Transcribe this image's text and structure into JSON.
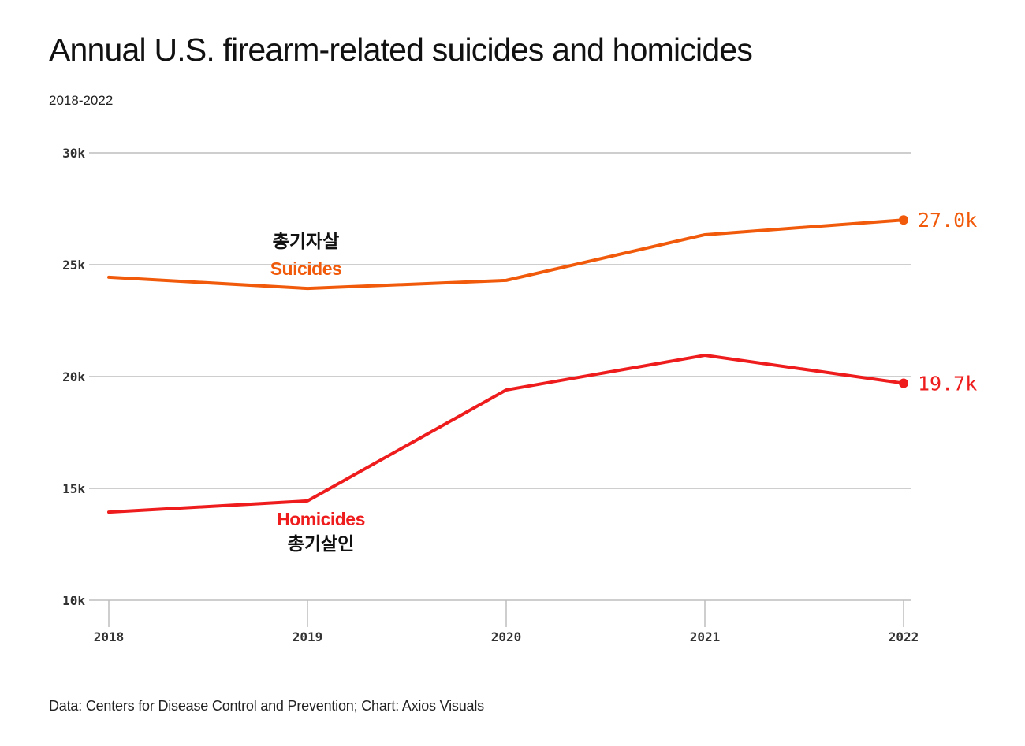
{
  "header": {
    "title": "Annual U.S. firearm-related suicides and homicides",
    "subtitle": "2018-2022"
  },
  "footer": {
    "source": "Data: Centers for Disease Control and Prevention; Chart: Axios Visuals"
  },
  "colors": {
    "suicides": "#f05a0a",
    "homicides": "#ee1c1c",
    "grid": "#bdbdbd",
    "text": "#333333"
  },
  "chart_data": {
    "type": "line",
    "title": "Annual U.S. firearm-related suicides and homicides",
    "subtitle": "2018-2022",
    "xlabel": "",
    "ylabel": "",
    "x": [
      "2018",
      "2019",
      "2020",
      "2021",
      "2022"
    ],
    "ylim": [
      10000,
      30000
    ],
    "yticks": [
      10000,
      15000,
      20000,
      25000,
      30000
    ],
    "ytick_labels": [
      "10k",
      "15k",
      "20k",
      "25k",
      "30k"
    ],
    "grid": true,
    "series": [
      {
        "name": "Suicides",
        "name_ko": "총기자살",
        "color": "#f05a0a",
        "values": [
          24440,
          23940,
          24300,
          26340,
          27000
        ],
        "end_label": "27.0k"
      },
      {
        "name": "Homicides",
        "name_ko": "총기살인",
        "color": "#ee1c1c",
        "values": [
          13940,
          14440,
          19400,
          20950,
          19700
        ],
        "end_label": "19.7k"
      }
    ],
    "source": "Data: Centers for Disease Control and Prevention; Chart: Axios Visuals"
  }
}
